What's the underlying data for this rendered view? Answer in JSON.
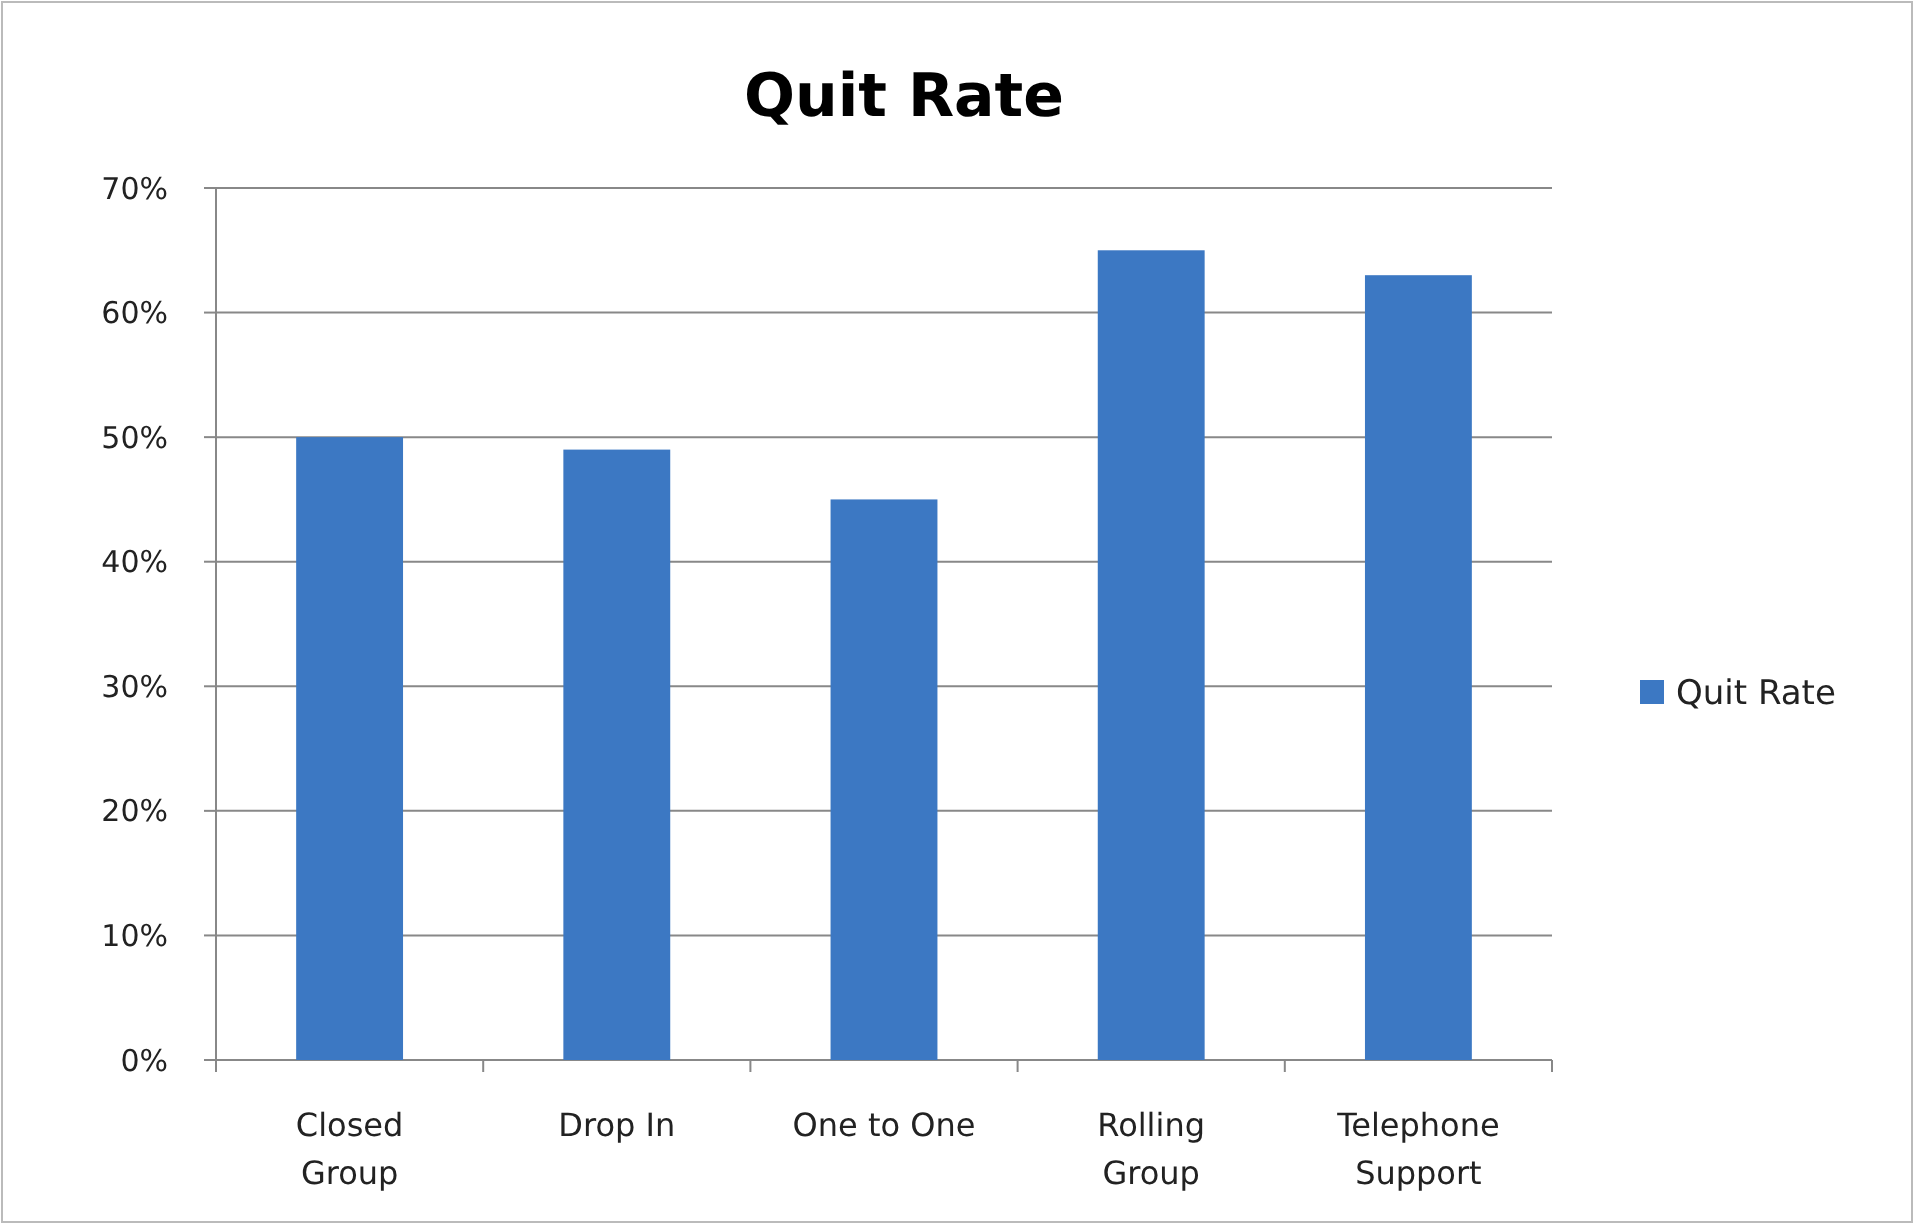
{
  "chart_data": {
    "type": "bar",
    "title": "Quit Rate",
    "categories": [
      "Closed Group",
      "Drop In",
      "One to One",
      "Rolling Group",
      "Telephone Support"
    ],
    "series": [
      {
        "name": "Quit Rate",
        "color": "#3c78c3",
        "values": [
          50,
          49,
          45,
          65,
          63
        ]
      }
    ],
    "ylim": [
      0,
      70
    ],
    "yticks": [
      {
        "value": 0,
        "label": "0%"
      },
      {
        "value": 10,
        "label": "10%"
      },
      {
        "value": 20,
        "label": "20%"
      },
      {
        "value": 30,
        "label": "30%"
      },
      {
        "value": 40,
        "label": "40%"
      },
      {
        "value": 50,
        "label": "50%"
      },
      {
        "value": 60,
        "label": "60%"
      },
      {
        "value": 70,
        "label": "70%"
      }
    ],
    "grid": "y",
    "legend": "right"
  }
}
